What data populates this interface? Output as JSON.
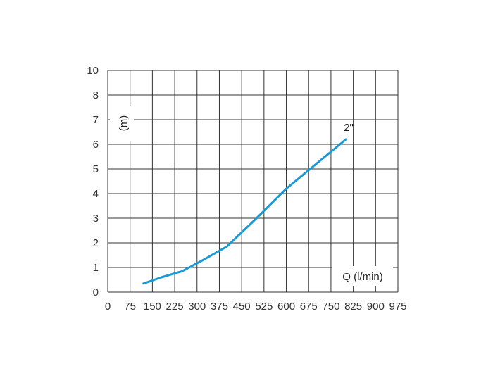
{
  "chart_data": {
    "type": "line",
    "title": "",
    "xlabel": "Q (l/min)",
    "ylabel": "(m)",
    "xlim": [
      0,
      975
    ],
    "x_ticks": [
      "0",
      "75",
      "150",
      "225",
      "300",
      "375",
      "450",
      "525",
      "600",
      "675",
      "750",
      "825",
      "900",
      "975"
    ],
    "y_ticks": [
      "0",
      "1",
      "2",
      "3",
      "4",
      "5",
      "6",
      "7",
      "8",
      "10"
    ],
    "grid": true,
    "colors": {
      "line": "#1a9ad6",
      "grid": "#333333",
      "text": "#333333"
    },
    "series": [
      {
        "name": "2\"",
        "x": [
          120,
          180,
          250,
          320,
          400,
          500,
          600,
          700,
          800
        ],
        "y": [
          0.35,
          0.6,
          0.85,
          1.3,
          1.85,
          3.0,
          4.2,
          5.2,
          6.2
        ]
      }
    ]
  }
}
